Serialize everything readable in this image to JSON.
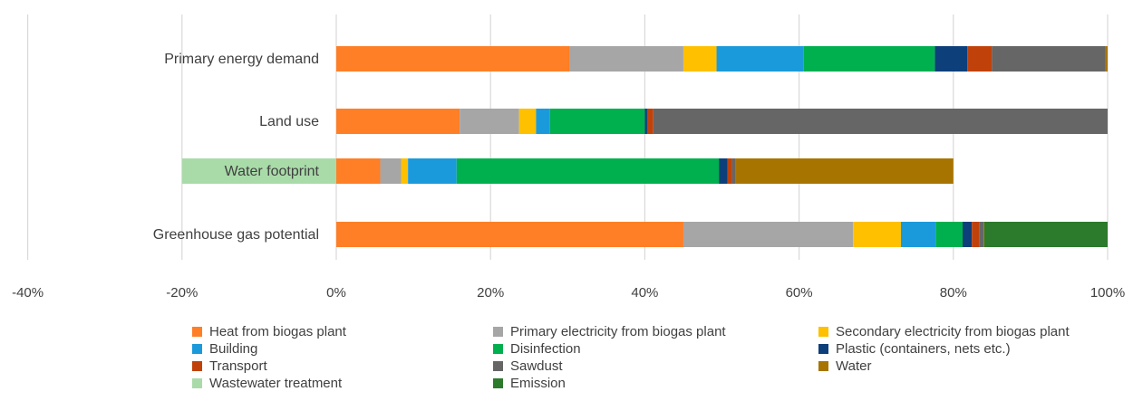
{
  "chart_data": {
    "type": "bar",
    "orientation": "horizontal",
    "stacked": true,
    "categories": [
      "Primary energy demand",
      "Land use",
      "Water footprint",
      "Greenhouse gas potential"
    ],
    "xlim": [
      -0.4,
      1.0
    ],
    "xticks": [
      -0.4,
      -0.2,
      0,
      0.2,
      0.4,
      0.6,
      0.8,
      1.0
    ],
    "xtick_labels": [
      "-40%",
      "-20%",
      "0%",
      "20%",
      "40%",
      "60%",
      "80%",
      "100%"
    ],
    "grid": "vertical",
    "legend_position": "bottom",
    "series": [
      {
        "name": "Heat from biogas plant",
        "color": "#FF7F27",
        "values": [
          0.302,
          0.16,
          0.057,
          0.45
        ]
      },
      {
        "name": "Primary electricity from biogas plant",
        "color": "#A6A6A6",
        "values": [
          0.148,
          0.077,
          0.027,
          0.22
        ]
      },
      {
        "name": "Secondary electricity from biogas plant",
        "color": "#FFC000",
        "values": [
          0.043,
          0.022,
          0.009,
          0.062
        ]
      },
      {
        "name": "Building",
        "color": "#1B9ADB",
        "values": [
          0.113,
          0.018,
          0.063,
          0.045
        ]
      },
      {
        "name": "Disinfection",
        "color": "#00B04F",
        "values": [
          0.17,
          0.123,
          0.34,
          0.035
        ]
      },
      {
        "name": "Plastic (containers, nets etc.)",
        "color": "#0D3F7A",
        "values": [
          0.042,
          0.003,
          0.011,
          0.012
        ]
      },
      {
        "name": "Transport",
        "color": "#C0420A",
        "values": [
          0.032,
          0.008,
          0.006,
          0.01
        ]
      },
      {
        "name": "Sawdust",
        "color": "#666666",
        "values": [
          0.147,
          0.589,
          0.005,
          0.005
        ]
      },
      {
        "name": "Water",
        "color": "#A87400",
        "values": [
          0.003,
          0,
          0.282,
          0.001
        ]
      },
      {
        "name": "Wastewater treatment",
        "color": "#A9DBA9",
        "values": [
          0,
          0,
          -0.2,
          0
        ]
      },
      {
        "name": "Emission",
        "color": "#2C7A2C",
        "values": [
          0,
          0,
          0,
          0.16
        ]
      }
    ]
  }
}
